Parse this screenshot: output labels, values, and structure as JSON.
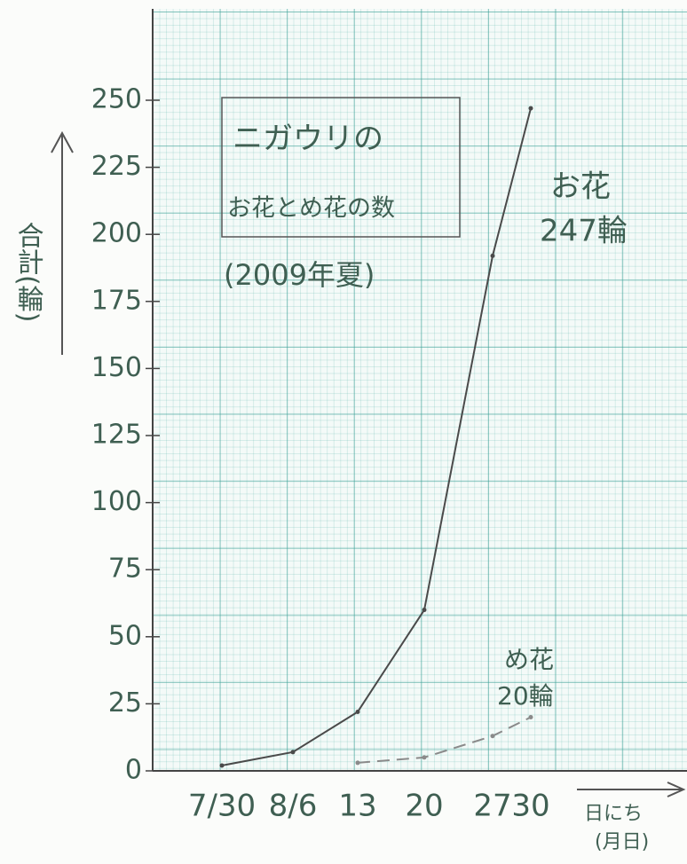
{
  "chart_data": {
    "type": "line",
    "title": "ニガウリの",
    "subtitle": "お花とめ花の数",
    "note": "(2009年夏)",
    "y_label": "合計(輪)",
    "x_label": "日にち",
    "x_unit": "(月日)",
    "categories": [
      "7/30",
      "8/6",
      "13",
      "20",
      "27",
      "30"
    ],
    "series": [
      {
        "name": "お花",
        "color": "#4a4a4a",
        "values": [
          2,
          7,
          22,
          60,
          192,
          247
        ],
        "dashed": false
      },
      {
        "name": "め花",
        "color": "#8a8a8a",
        "values": [
          null,
          null,
          3,
          5,
          13,
          20
        ],
        "dashed": true
      }
    ],
    "annotations": [
      "247輪",
      "20輪"
    ],
    "ylim": [
      0,
      280
    ],
    "yticks": [
      0,
      25,
      50,
      75,
      100,
      125,
      150,
      175,
      200,
      225,
      250
    ]
  }
}
